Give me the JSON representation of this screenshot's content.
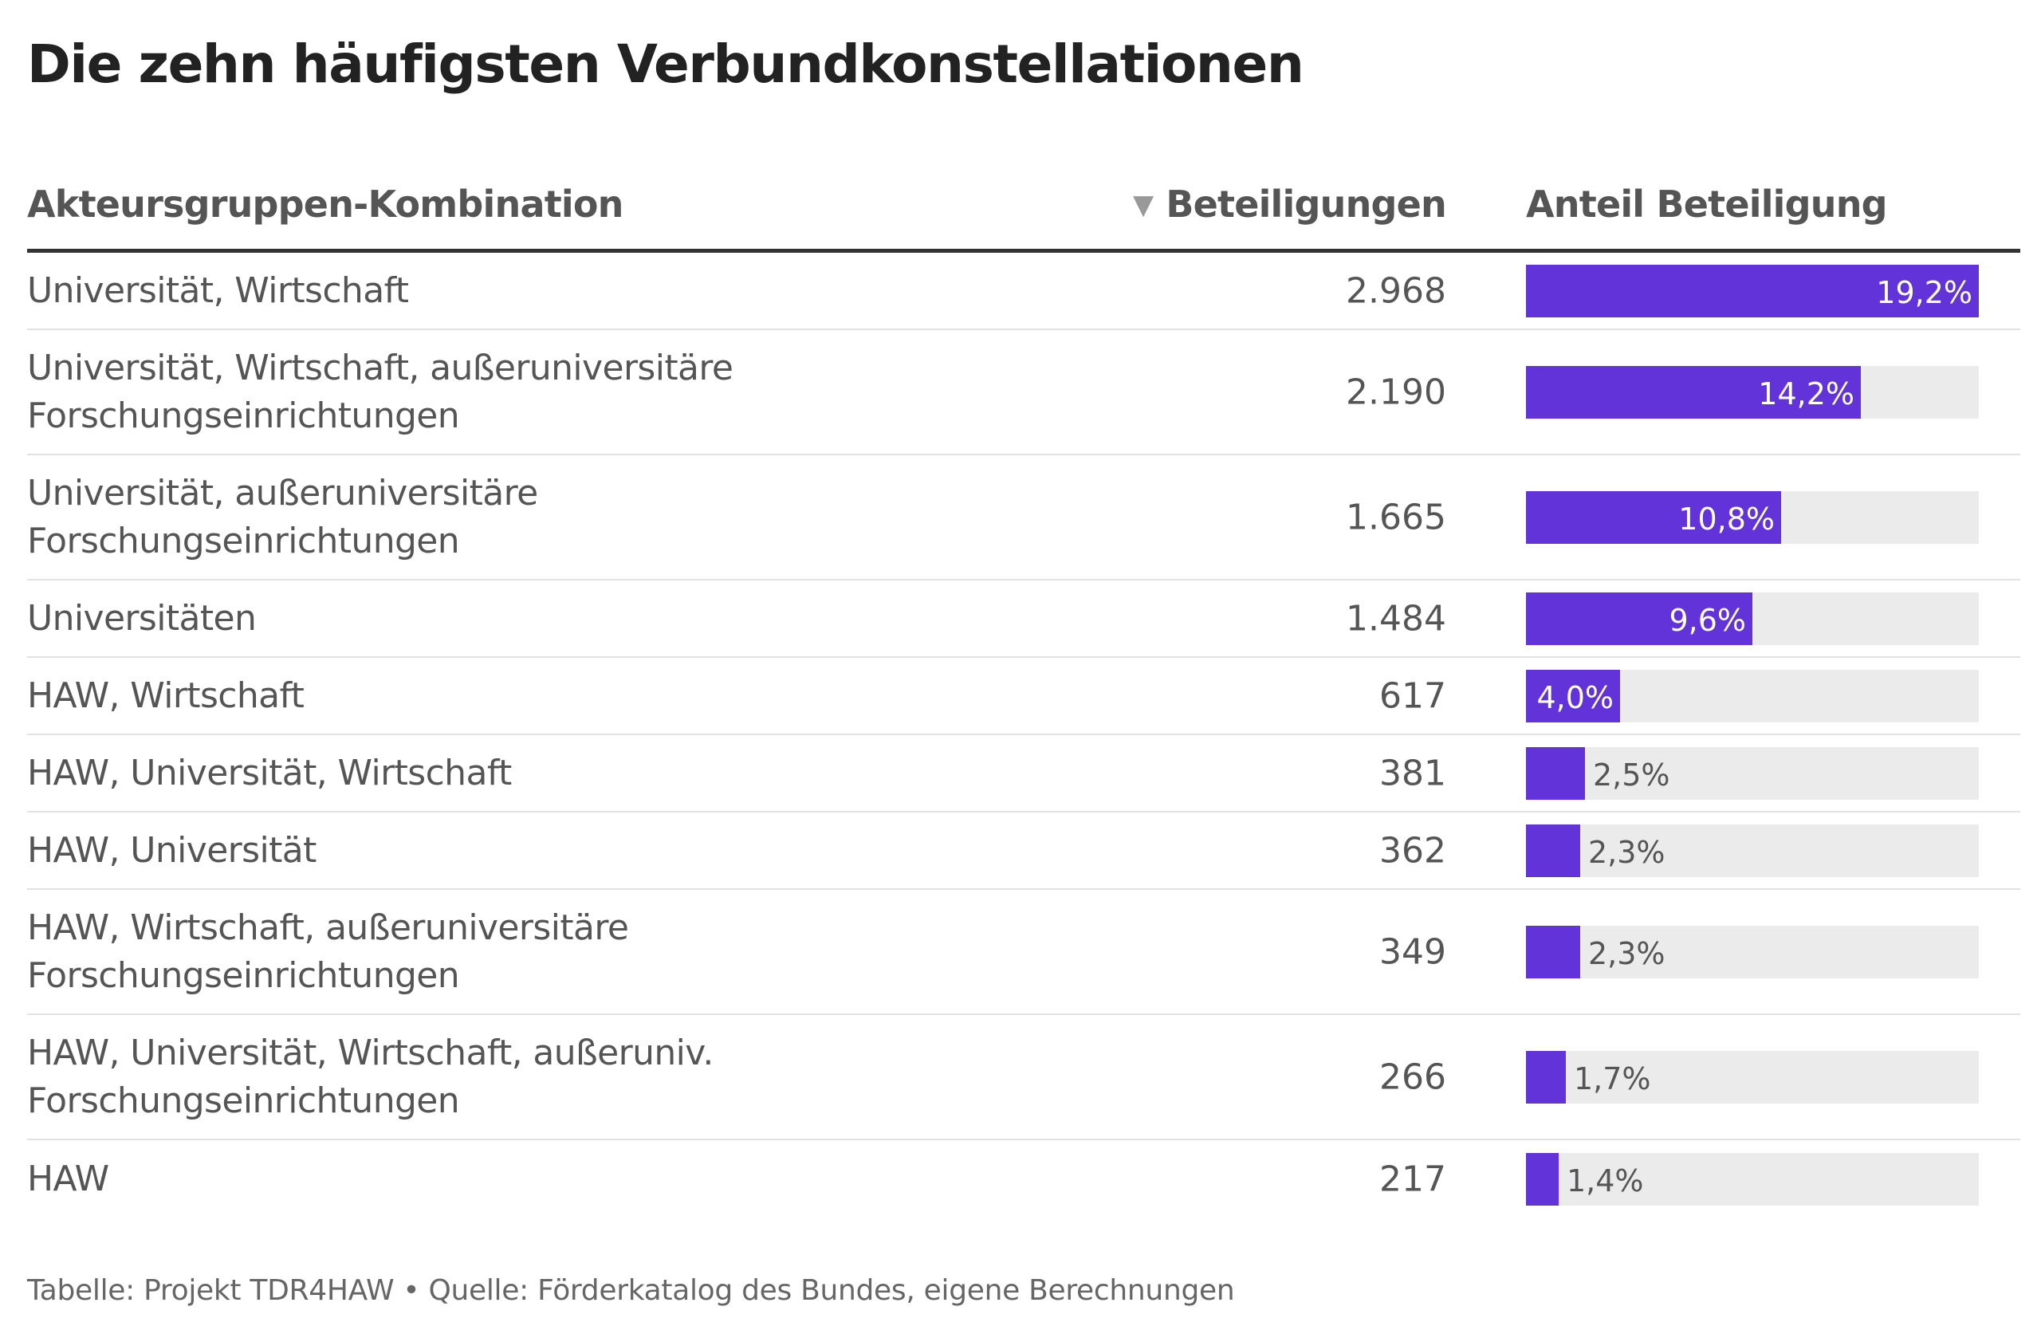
{
  "title": "Die zehn häufigsten Verbundkonstellationen",
  "header": {
    "combination": "Akteursgruppen-Kombination",
    "count": "Beteiligungen",
    "share": "Anteil Beteiligung",
    "sort_icon": "sort-descending-icon"
  },
  "footer": "Tabelle: Projekt TDR4HAW • Quelle: Förderkatalog des Bundes, eigene Berechnungen",
  "colors": {
    "bar": "#6233d9",
    "track": "#ebebeb"
  },
  "chart_data": {
    "type": "table",
    "columns": [
      "Akteursgruppen-Kombination",
      "Beteiligungen",
      "Anteil Beteiligung"
    ],
    "bar_max": 19.2,
    "rows": [
      {
        "lines": [
          "Universität, Wirtschaft"
        ],
        "count": "2.968",
        "share": 19.2,
        "share_label": "19,2%"
      },
      {
        "lines": [
          "Universität, Wirtschaft, außeruniversitäre",
          "Forschungseinrichtungen"
        ],
        "count": "2.190",
        "share": 14.2,
        "share_label": "14,2%"
      },
      {
        "lines": [
          "Universität, außeruniversitäre",
          "Forschungseinrichtungen"
        ],
        "count": "1.665",
        "share": 10.8,
        "share_label": "10,8%"
      },
      {
        "lines": [
          "Universitäten"
        ],
        "count": "1.484",
        "share": 9.6,
        "share_label": "9,6%"
      },
      {
        "lines": [
          "HAW, Wirtschaft"
        ],
        "count": "617",
        "share": 4.0,
        "share_label": "4,0%"
      },
      {
        "lines": [
          "HAW, Universität, Wirtschaft"
        ],
        "count": "381",
        "share": 2.5,
        "share_label": "2,5%"
      },
      {
        "lines": [
          "HAW, Universität"
        ],
        "count": "362",
        "share": 2.3,
        "share_label": "2,3%"
      },
      {
        "lines": [
          "HAW, Wirtschaft, außeruniversitäre",
          "Forschungseinrichtungen"
        ],
        "count": "349",
        "share": 2.3,
        "share_label": "2,3%"
      },
      {
        "lines": [
          "HAW, Universität, Wirtschaft, außeruniv.",
          "Forschungseinrichtungen"
        ],
        "count": "266",
        "share": 1.7,
        "share_label": "1,7%"
      },
      {
        "lines": [
          "HAW"
        ],
        "count": "217",
        "share": 1.4,
        "share_label": "1,4%"
      }
    ]
  }
}
